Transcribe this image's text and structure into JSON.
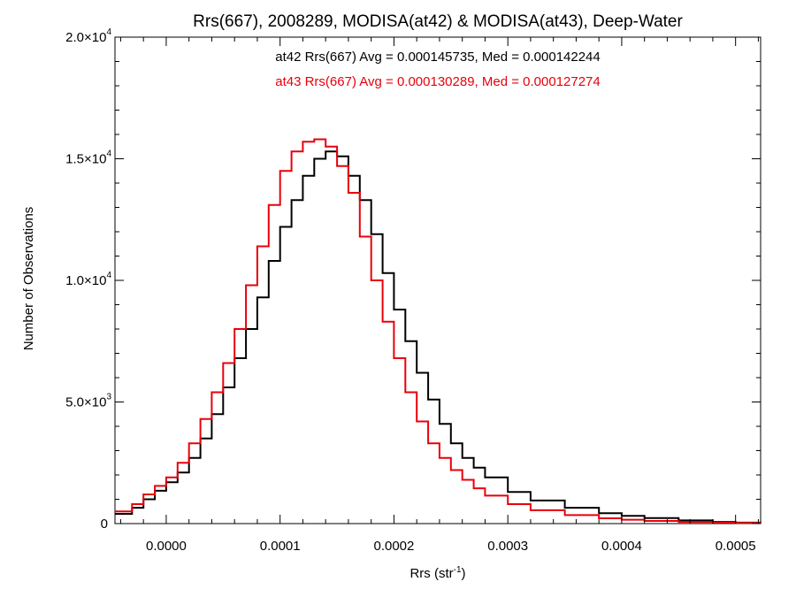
{
  "chart_data": {
    "type": "line",
    "title": "Rrs(667), 2008289, MODISA(at42) & MODISA(at43), Deep-Water",
    "xlabel": "Rrs (str",
    "xlabel_sup": "-1",
    "xlabel_tail": ")",
    "ylabel": "Number of Observations",
    "xlim": [
      -4.5e-05,
      0.000522
    ],
    "ylim": [
      0,
      20000
    ],
    "xticks": [
      {
        "value": 0.0,
        "label": "0.0000"
      },
      {
        "value": 0.0001,
        "label": "0.0001"
      },
      {
        "value": 0.0002,
        "label": "0.0002"
      },
      {
        "value": 0.0003,
        "label": "0.0003"
      },
      {
        "value": 0.0004,
        "label": "0.0004"
      },
      {
        "value": 0.0005,
        "label": "0.0005"
      }
    ],
    "yticks": [
      {
        "value": 0,
        "mantissa": "0",
        "exp": ""
      },
      {
        "value": 5000,
        "mantissa": "5.0×10",
        "exp": "3"
      },
      {
        "value": 10000,
        "mantissa": "1.0×10",
        "exp": "4"
      },
      {
        "value": 15000,
        "mantissa": "1.5×10",
        "exp": "4"
      },
      {
        "value": 20000,
        "mantissa": "2.0×10",
        "exp": "4"
      }
    ],
    "grid": false,
    "annotations": [
      {
        "text": "at42 Rrs(667) Avg = 0.000145735, Med = 0.000142244",
        "color": "#000000"
      },
      {
        "text": "at43 Rrs(667) Avg = 0.000130289, Med = 0.000127274",
        "color": "#e8000b"
      }
    ],
    "series": [
      {
        "color": "#000000",
        "x": [
          -4.5e-05,
          -3e-05,
          -2e-05,
          -1e-05,
          0.0,
          1e-05,
          2e-05,
          3e-05,
          4e-05,
          5e-05,
          6e-05,
          7e-05,
          8e-05,
          9e-05,
          0.0001,
          0.00011,
          0.00012,
          0.00013,
          0.00014,
          0.00015,
          0.00016,
          0.00017,
          0.00018,
          0.00019,
          0.0002,
          0.00021,
          0.00022,
          0.00023,
          0.00024,
          0.00025,
          0.00026,
          0.00027,
          0.00028,
          0.0003,
          0.00032,
          0.00035,
          0.00038,
          0.0004,
          0.00042,
          0.00045,
          0.00048,
          0.0005,
          0.000522
        ],
        "values": [
          400,
          650,
          1000,
          1350,
          1700,
          2100,
          2700,
          3500,
          4500,
          5600,
          6800,
          8000,
          9300,
          10800,
          12200,
          13300,
          14300,
          15000,
          15300,
          15100,
          14300,
          13300,
          11900,
          10300,
          8800,
          7500,
          6200,
          5100,
          4100,
          3300,
          2700,
          2300,
          1900,
          1300,
          950,
          650,
          430,
          320,
          230,
          130,
          70,
          40,
          20
        ]
      },
      {
        "color": "#e8000b",
        "x": [
          -4.5e-05,
          -3e-05,
          -2e-05,
          -1e-05,
          0.0,
          1e-05,
          2e-05,
          3e-05,
          4e-05,
          5e-05,
          6e-05,
          7e-05,
          8e-05,
          9e-05,
          0.0001,
          0.00011,
          0.00012,
          0.00013,
          0.00014,
          0.00015,
          0.00016,
          0.00017,
          0.00018,
          0.00019,
          0.0002,
          0.00021,
          0.00022,
          0.00023,
          0.00024,
          0.00025,
          0.00026,
          0.00027,
          0.00028,
          0.0003,
          0.00032,
          0.00035,
          0.00038,
          0.0004,
          0.00042,
          0.00045,
          0.00048,
          0.0005,
          0.000522
        ],
        "values": [
          500,
          800,
          1200,
          1550,
          1900,
          2500,
          3300,
          4300,
          5400,
          6600,
          8000,
          9800,
          11400,
          13100,
          14500,
          15300,
          15700,
          15800,
          15500,
          14700,
          13600,
          11800,
          10000,
          8300,
          6800,
          5400,
          4200,
          3300,
          2700,
          2200,
          1800,
          1450,
          1150,
          800,
          550,
          350,
          220,
          160,
          110,
          70,
          40,
          25,
          15
        ]
      }
    ]
  }
}
